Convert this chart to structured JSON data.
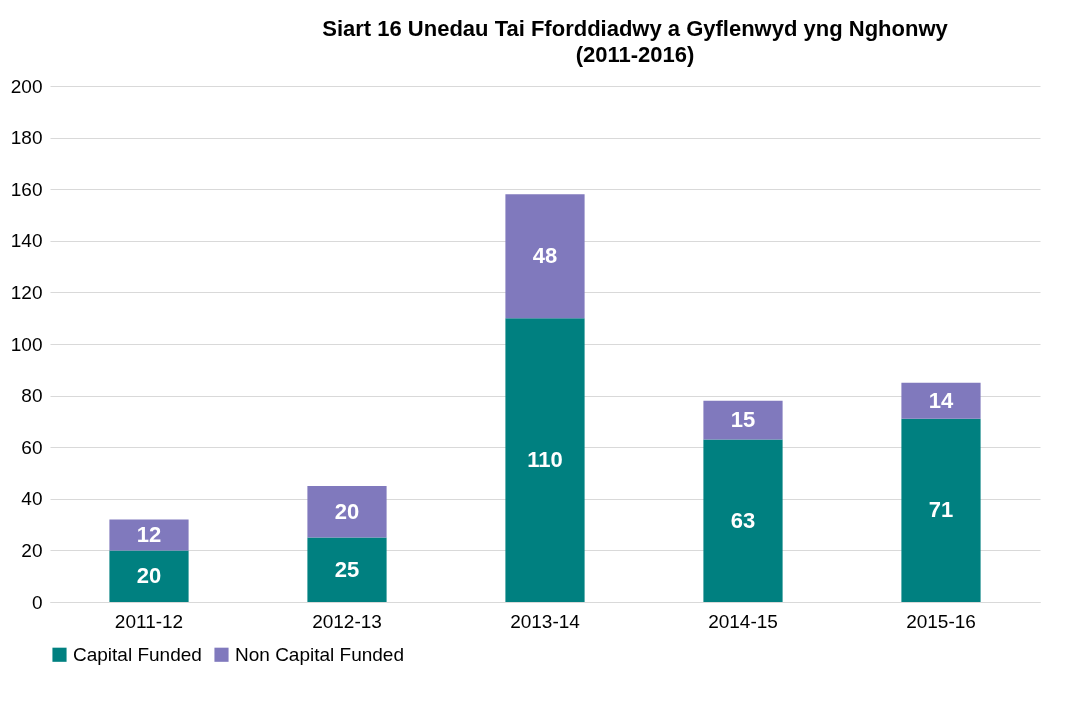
{
  "chart_data": {
    "type": "bar",
    "title": [
      "Siart 16 Unedau Tai Fforddiadwy a Gyflenwyd yng Nghonwy",
      "(2011-2016)"
    ],
    "categories": [
      "2011-12",
      "2012-13",
      "2013-14",
      "2014-15",
      "2015-16"
    ],
    "series": [
      {
        "name": "Capital Funded",
        "color": "#008080",
        "values": [
          20,
          25,
          110,
          63,
          71
        ]
      },
      {
        "name": "Non Capital Funded",
        "color": "#8079bd",
        "values": [
          12,
          20,
          48,
          15,
          14
        ]
      }
    ],
    "stacked": true,
    "data_labels": true,
    "ylim": [
      0,
      200
    ],
    "yticks": [
      0,
      20,
      40,
      60,
      80,
      100,
      120,
      140,
      160,
      180,
      200
    ],
    "grid": "y",
    "legend": "bottom"
  }
}
